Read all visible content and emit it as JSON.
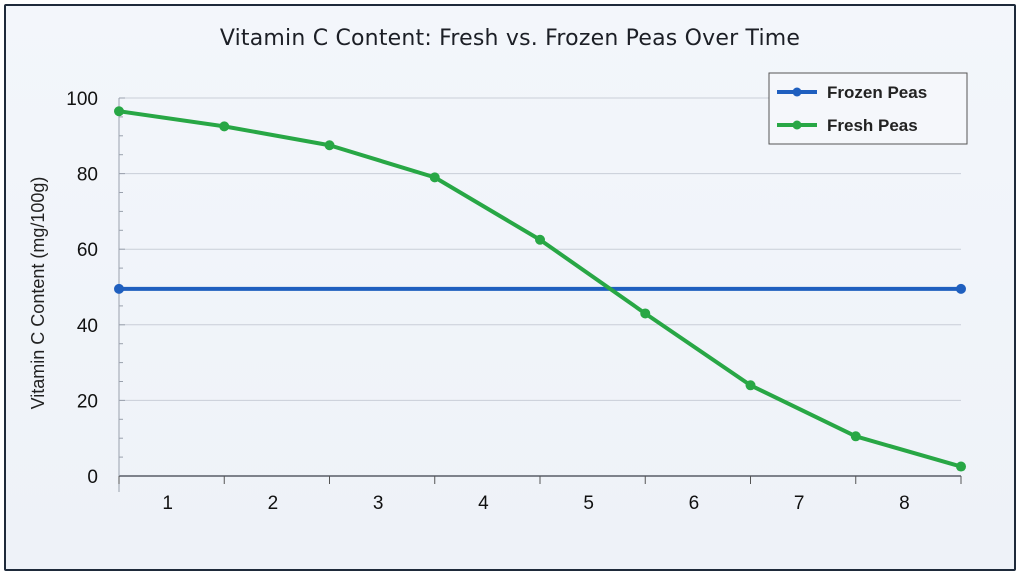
{
  "chart_data": {
    "type": "line",
    "title": "Vitamin C Content: Fresh vs. Frozen Peas Over Time",
    "xlabel": "",
    "ylabel": "Vitamin C Content (mg/100g)",
    "ylim": [
      0,
      100
    ],
    "yticks": [
      0,
      20,
      40,
      60,
      80,
      100
    ],
    "xticks": [
      1,
      2,
      3,
      4,
      5,
      6,
      7,
      8
    ],
    "xlim": [
      0.5,
      8.5
    ],
    "grid": true,
    "legend_position": "top-right",
    "series": [
      {
        "name": "Frozen Peas",
        "color": "#1f5fbf",
        "x": [
          0.5,
          8.5
        ],
        "values": [
          49.5,
          49.5
        ]
      },
      {
        "name": "Fresh Peas",
        "color": "#28a745",
        "x": [
          0.5,
          1.5,
          2.5,
          3.5,
          4.5,
          5.5,
          6.5,
          7.5,
          8.5
        ],
        "values": [
          96.5,
          92.5,
          87.5,
          79,
          62.5,
          43,
          24,
          10.5,
          2.5
        ]
      }
    ]
  }
}
